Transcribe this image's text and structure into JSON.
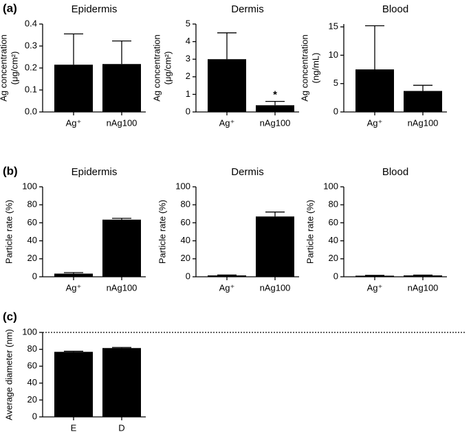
{
  "chart_data": [
    {
      "type": "bar",
      "panel": "(a)",
      "title": "Epidermis",
      "ylabel": [
        "Ag concentration",
        "(μg/cm²)"
      ],
      "categories": [
        "Ag⁺",
        "nAg100"
      ],
      "values": [
        0.215,
        0.218
      ],
      "errors": [
        0.14,
        0.105
      ],
      "color": "#000000",
      "ylim": [
        0,
        0.4
      ],
      "yticks": [
        {
          "value": 0,
          "label": "0.0"
        },
        0.1,
        0.2,
        0.3,
        0.4
      ]
    },
    {
      "type": "bar",
      "title": "Dermis",
      "ylabel": [
        "Ag concentration",
        "(μg/cm²)"
      ],
      "categories": [
        "Ag⁺",
        "nAg100"
      ],
      "values": [
        3.0,
        0.38
      ],
      "errors": [
        1.5,
        0.22
      ],
      "color": "#000000",
      "ylim": [
        0,
        5
      ],
      "yticks": [
        0,
        1,
        2,
        3,
        4,
        5
      ],
      "annotation": "*"
    },
    {
      "type": "bar",
      "title": "Blood",
      "ylabel": [
        "Ag concentration",
        "(ng/mL)"
      ],
      "categories": [
        "Ag⁺",
        "nAg100"
      ],
      "values": [
        7.5,
        3.7
      ],
      "errors": [
        7.7,
        1.0
      ],
      "color": "#000000",
      "ylim": [
        0,
        15.5
      ],
      "yticks": [
        0,
        5,
        10,
        15
      ]
    },
    {
      "type": "bar",
      "panel": "(b)",
      "title": "Epidermis",
      "ylabel": [
        "Particle rate (%)"
      ],
      "categories": [
        "Ag⁺",
        "nAg100"
      ],
      "values": [
        3.5,
        63.5
      ],
      "errors": [
        1.2,
        1.5
      ],
      "color": "#000000",
      "ylim": [
        0,
        100
      ],
      "yticks": [
        0,
        20,
        40,
        60,
        80,
        100
      ]
    },
    {
      "type": "bar",
      "title": "Dermis",
      "ylabel": [
        "Particle rate (%)"
      ],
      "categories": [
        "Ag⁺",
        "nAg100"
      ],
      "values": [
        1.5,
        67
      ],
      "errors": [
        0.5,
        5
      ],
      "color": "#000000",
      "ylim": [
        0,
        100
      ],
      "yticks": [
        0,
        20,
        40,
        60,
        80,
        100
      ]
    },
    {
      "type": "bar",
      "title": "Blood",
      "ylabel": [
        "Particle rate (%)"
      ],
      "categories": [
        "Ag⁺",
        "nAg100"
      ],
      "values": [
        1.2,
        1.5
      ],
      "errors": [
        0.4,
        0.4
      ],
      "color": "#000000",
      "ylim": [
        0,
        100
      ],
      "yticks": [
        0,
        20,
        40,
        60,
        80,
        100
      ]
    },
    {
      "type": "bar",
      "panel": "(c)",
      "ylabel": [
        "Average diameter (nm)"
      ],
      "categories": [
        "E",
        "D"
      ],
      "values": [
        77,
        81.5
      ],
      "errors": [
        0.7,
        0.7
      ],
      "color": "#000000",
      "ylim": [
        0,
        100
      ],
      "yticks": [
        0,
        20,
        40,
        60,
        80,
        100
      ],
      "reference_line": 100
    }
  ]
}
